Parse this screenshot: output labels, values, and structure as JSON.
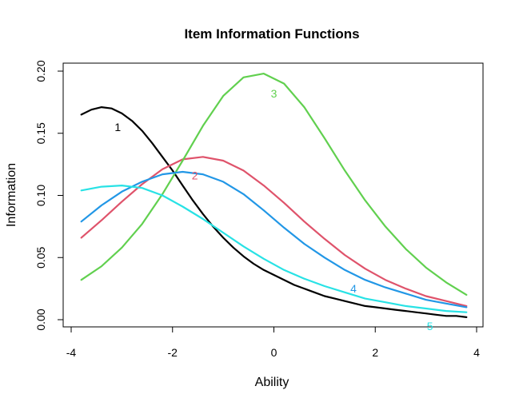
{
  "chart_data": {
    "type": "line",
    "title": "Item Information Functions",
    "xlabel": "Ability",
    "ylabel": "Information",
    "xlim": [
      -4,
      4
    ],
    "ylim": [
      0,
      0.2
    ],
    "xticks": [
      -4,
      -2,
      0,
      2,
      4
    ],
    "yticks": [
      0.0,
      0.05,
      0.1,
      0.15,
      0.2
    ],
    "xtick_labels": [
      "-4",
      "-2",
      "0",
      "2",
      "4"
    ],
    "ytick_labels": [
      "0.00",
      "0.05",
      "0.10",
      "0.15",
      "0.20"
    ],
    "grid": false,
    "legend": "none",
    "series": [
      {
        "label": "1",
        "color": "#000000",
        "label_pos": [
          -3.08,
          0.155
        ],
        "x": [
          -3.8,
          -3.6,
          -3.4,
          -3.2,
          -3.0,
          -2.8,
          -2.6,
          -2.4,
          -2.2,
          -2.0,
          -1.8,
          -1.6,
          -1.4,
          -1.2,
          -1.0,
          -0.8,
          -0.6,
          -0.4,
          -0.2,
          0.0,
          0.2,
          0.4,
          0.6,
          0.8,
          1.0,
          1.2,
          1.4,
          1.6,
          1.8,
          2.0,
          2.2,
          2.4,
          2.6,
          2.8,
          3.0,
          3.2,
          3.4,
          3.6,
          3.8
        ],
        "values": [
          0.165,
          0.169,
          0.171,
          0.17,
          0.166,
          0.16,
          0.152,
          0.142,
          0.131,
          0.12,
          0.108,
          0.096,
          0.085,
          0.075,
          0.066,
          0.058,
          0.051,
          0.045,
          0.04,
          0.036,
          0.032,
          0.028,
          0.025,
          0.022,
          0.019,
          0.017,
          0.015,
          0.013,
          0.011,
          0.01,
          0.009,
          0.008,
          0.007,
          0.006,
          0.005,
          0.004,
          0.003,
          0.003,
          0.002
        ]
      },
      {
        "label": "2",
        "color": "#DF536B",
        "label_pos": [
          -1.56,
          0.116
        ],
        "x": [
          -3.8,
          -3.4,
          -3.0,
          -2.6,
          -2.2,
          -1.8,
          -1.4,
          -1.0,
          -0.6,
          -0.2,
          0.2,
          0.6,
          1.0,
          1.4,
          1.8,
          2.2,
          2.6,
          3.0,
          3.4,
          3.8
        ],
        "values": [
          0.066,
          0.08,
          0.095,
          0.109,
          0.121,
          0.129,
          0.131,
          0.128,
          0.12,
          0.108,
          0.094,
          0.079,
          0.065,
          0.052,
          0.041,
          0.032,
          0.025,
          0.019,
          0.015,
          0.011
        ]
      },
      {
        "label": "3",
        "color": "#61D04F",
        "label_pos": [
          0.0,
          0.182
        ],
        "x": [
          -3.8,
          -3.4,
          -3.0,
          -2.6,
          -2.2,
          -1.8,
          -1.4,
          -1.0,
          -0.6,
          -0.2,
          0.2,
          0.6,
          1.0,
          1.4,
          1.8,
          2.2,
          2.6,
          3.0,
          3.4,
          3.8
        ],
        "values": [
          0.032,
          0.043,
          0.058,
          0.077,
          0.101,
          0.128,
          0.156,
          0.18,
          0.195,
          0.198,
          0.19,
          0.171,
          0.146,
          0.12,
          0.096,
          0.075,
          0.057,
          0.042,
          0.03,
          0.02
        ]
      },
      {
        "label": "4",
        "color": "#2297E6",
        "label_pos": [
          1.57,
          0.025
        ],
        "x": [
          -3.8,
          -3.4,
          -3.0,
          -2.6,
          -2.2,
          -1.8,
          -1.4,
          -1.0,
          -0.6,
          -0.2,
          0.2,
          0.6,
          1.0,
          1.4,
          1.8,
          2.2,
          2.6,
          3.0,
          3.4,
          3.8
        ],
        "values": [
          0.079,
          0.092,
          0.103,
          0.111,
          0.117,
          0.119,
          0.117,
          0.111,
          0.101,
          0.088,
          0.074,
          0.061,
          0.05,
          0.04,
          0.032,
          0.026,
          0.021,
          0.016,
          0.013,
          0.01
        ]
      },
      {
        "label": "5",
        "color": "#28E2E5",
        "label_pos": [
          3.08,
          -0.005
        ],
        "x": [
          -3.8,
          -3.4,
          -3.0,
          -2.6,
          -2.2,
          -1.8,
          -1.4,
          -1.0,
          -0.6,
          -0.2,
          0.2,
          0.6,
          1.0,
          1.4,
          1.8,
          2.2,
          2.6,
          3.0,
          3.4,
          3.8
        ],
        "values": [
          0.104,
          0.107,
          0.108,
          0.106,
          0.1,
          0.091,
          0.081,
          0.07,
          0.059,
          0.049,
          0.04,
          0.033,
          0.027,
          0.022,
          0.017,
          0.014,
          0.011,
          0.009,
          0.007,
          0.006
        ]
      }
    ]
  }
}
